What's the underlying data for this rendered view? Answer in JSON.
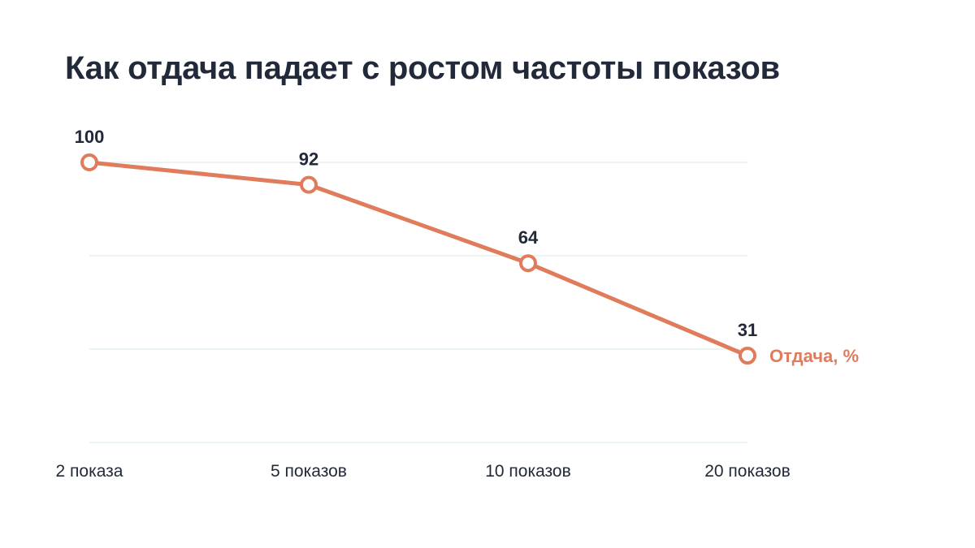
{
  "chart_data": {
    "type": "line",
    "title": "Как отдача падает с ростом частоты показов",
    "categories": [
      "2 показа",
      "5 показов",
      "10 показов",
      "20 показов"
    ],
    "series": [
      {
        "name": "Отдача, %",
        "values": [
          100,
          92,
          64,
          31
        ],
        "color": "#e07b5c"
      }
    ],
    "data_labels": [
      "100",
      "92",
      "64",
      "31"
    ],
    "ylim": [
      0,
      100
    ],
    "grid": true,
    "y_axis_labels_visible": false,
    "legend": "end-of-line label"
  }
}
